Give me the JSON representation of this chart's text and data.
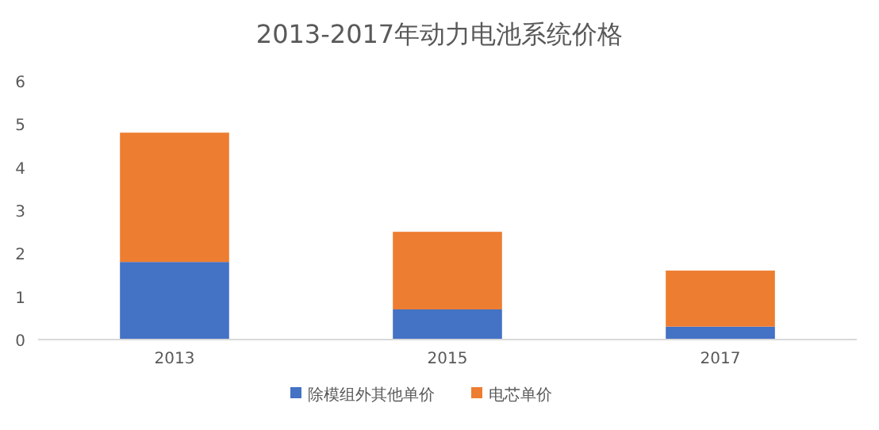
{
  "chart_data": {
    "type": "bar",
    "title": "2013-2017年动力电池系统价格",
    "stacked": true,
    "categories": [
      "2013",
      "2015",
      "2017"
    ],
    "series": [
      {
        "name": "除模组外其他单价",
        "color": "#4472c4",
        "values": [
          1.8,
          0.7,
          0.3
        ]
      },
      {
        "name": "电芯单价",
        "color": "#ed7d31",
        "values": [
          3.0,
          1.8,
          1.3
        ]
      }
    ],
    "ylim": [
      0,
      6
    ],
    "yticks": [
      0,
      1,
      2,
      3,
      4,
      5,
      6
    ],
    "grid": false,
    "legend": "bottom"
  }
}
